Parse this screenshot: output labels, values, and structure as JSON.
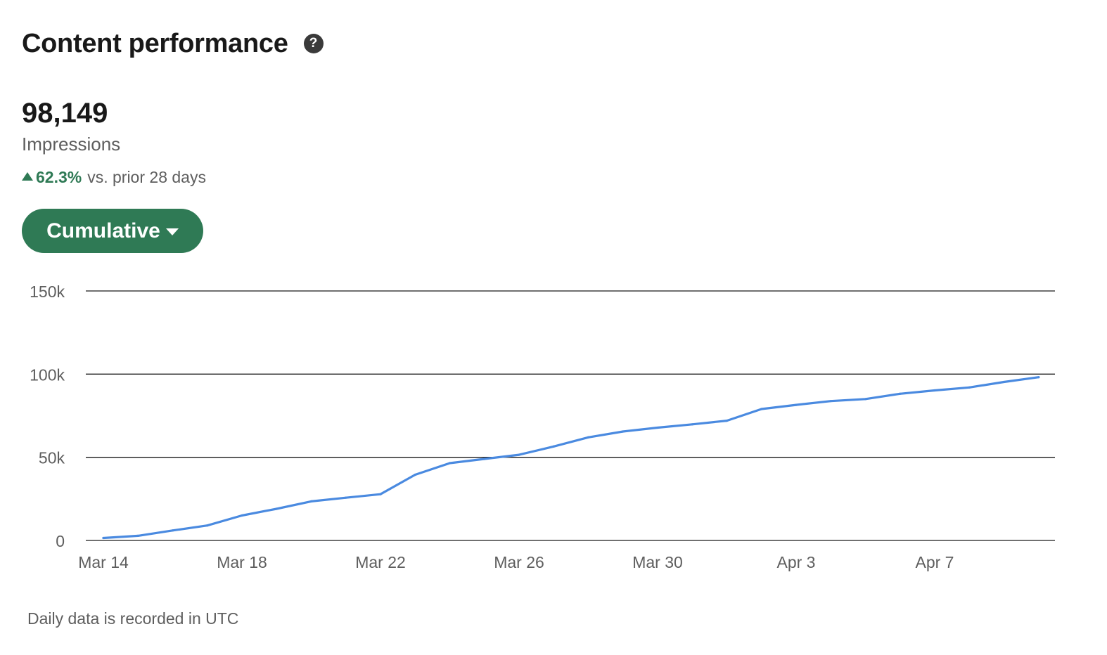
{
  "header": {
    "title": "Content performance",
    "help_icon": "question-circle-icon"
  },
  "metric": {
    "value": "98,149",
    "label": "Impressions",
    "change_percent": "62.3%",
    "change_direction": "up",
    "change_text": "vs. prior 28 days"
  },
  "dropdown": {
    "label": "Cumulative",
    "icon": "caret-down-icon"
  },
  "footnote": "Daily data is recorded in UTC",
  "colors": {
    "accent": "#2f7a55",
    "line": "#4a8ae0",
    "positive": "#2f7a55"
  },
  "chart_data": {
    "type": "line",
    "title": "",
    "xlabel": "",
    "ylabel": "",
    "ylim": [
      0,
      150000
    ],
    "y_ticks": [
      {
        "value": 0,
        "label": "0"
      },
      {
        "value": 50000,
        "label": "50k"
      },
      {
        "value": 100000,
        "label": "100k"
      },
      {
        "value": 150000,
        "label": "150k"
      }
    ],
    "x_tick_labels": [
      "Mar 14",
      "Mar 18",
      "Mar 22",
      "Mar 26",
      "Mar 30",
      "Apr 3",
      "Apr 7"
    ],
    "grid": true,
    "series": [
      {
        "x": [
          "Mar 14",
          "Mar 15",
          "Mar 16",
          "Mar 17",
          "Mar 18",
          "Mar 19",
          "Mar 20",
          "Mar 21",
          "Mar 22",
          "Mar 23",
          "Mar 24",
          "Mar 25",
          "Mar 26",
          "Mar 27",
          "Mar 28",
          "Mar 29",
          "Mar 30",
          "Mar 31",
          "Apr 1",
          "Apr 2",
          "Apr 3",
          "Apr 4",
          "Apr 5",
          "Apr 6",
          "Apr 7",
          "Apr 8",
          "Apr 9",
          "Apr 10"
        ],
        "values": [
          1500,
          2800,
          6000,
          9000,
          15000,
          19000,
          23500,
          25700,
          27800,
          39500,
          46500,
          49000,
          51500,
          56500,
          62000,
          65500,
          67800,
          69800,
          72000,
          79000,
          81500,
          83800,
          85000,
          88200,
          90200,
          92000,
          95300,
          98149
        ]
      }
    ]
  }
}
